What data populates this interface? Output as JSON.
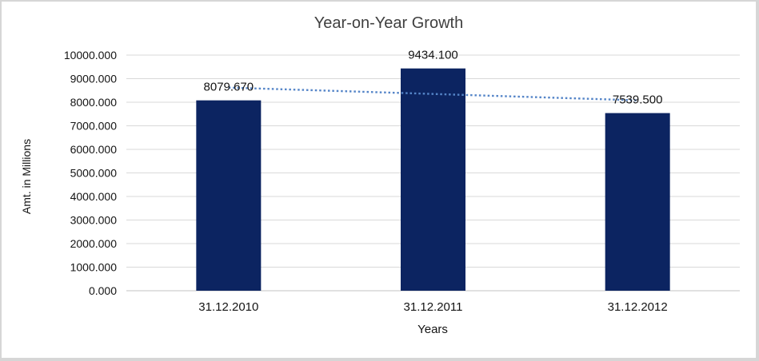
{
  "frame": {
    "border_color": "#d6d6d6",
    "background": "#ffffff"
  },
  "chart_data": {
    "type": "bar",
    "title": "Year-on-Year Growth",
    "xlabel": "Years",
    "ylabel": "Amt. in Millions",
    "categories": [
      "31.12.2010",
      "31.12.2011",
      "31.12.2012"
    ],
    "series": [
      {
        "name": "Amt. in Millions",
        "values": [
          8079.67,
          9434.1,
          7539.5
        ],
        "data_labels": [
          "8079.670",
          "9434.100",
          "7539.500"
        ],
        "color": "#0c2461"
      }
    ],
    "ylim": [
      0,
      10000
    ],
    "y_tick_step": 1000,
    "y_tick_labels": [
      "0.000",
      "1000.000",
      "2000.000",
      "3000.000",
      "4000.000",
      "5000.000",
      "6000.000",
      "7000.000",
      "8000.000",
      "9000.000",
      "10000.000"
    ],
    "gridlines": true,
    "legend": "none",
    "trendline": {
      "type": "linear",
      "style": "dotted",
      "color": "#5585c8"
    },
    "colors": {
      "title_text": "#3f3f3f",
      "axis_text": "#141414",
      "gridline": "#d9d9d9",
      "axis_line": "#c3c3c3"
    }
  }
}
